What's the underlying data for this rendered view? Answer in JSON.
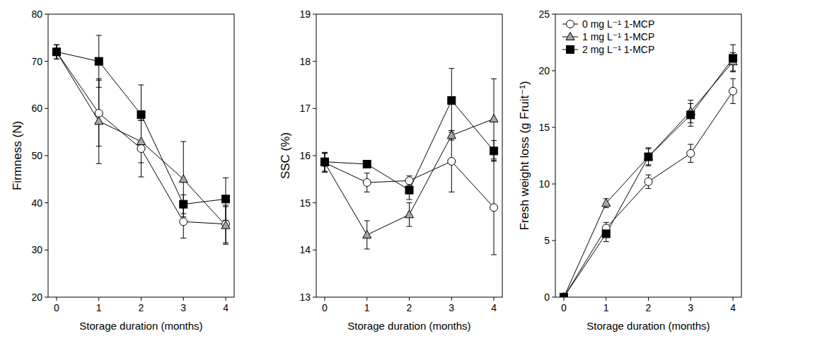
{
  "chart_data": [
    {
      "type": "line",
      "x_label": "Storage duration (months)",
      "y_label": "Firmness (N)",
      "x": [
        0,
        1,
        2,
        3,
        4
      ],
      "xlim": [
        -0.2,
        4.2
      ],
      "xticks": [
        0,
        1,
        2,
        3,
        4
      ],
      "ylim": [
        20,
        80
      ],
      "yticks": [
        20,
        30,
        40,
        50,
        60,
        70,
        80
      ],
      "series": [
        {
          "color": "#ffffff",
          "marker": "circle",
          "values": [
            72,
            59,
            51.5,
            36,
            35.5
          ],
          "errors": [
            1.5,
            7,
            6,
            3.5,
            4
          ]
        },
        {
          "color": "#a6a6a6",
          "marker": "triangle",
          "values": [
            72,
            57.3,
            53,
            45,
            35.2
          ],
          "errors": [
            1.5,
            9,
            4.5,
            8,
            4
          ]
        },
        {
          "color": "#000000",
          "marker": "square",
          "values": [
            72,
            70,
            58.7,
            39.7,
            40.8
          ],
          "errors": [
            1.5,
            5.5,
            6.3,
            2,
            4.5
          ]
        }
      ]
    },
    {
      "type": "line",
      "x_label": "Storage duration (months)",
      "y_label": "SSC (%)",
      "x": [
        0,
        1,
        2,
        3,
        4
      ],
      "xlim": [
        -0.2,
        4.2
      ],
      "xticks": [
        0,
        1,
        2,
        3,
        4
      ],
      "ylim": [
        13,
        19
      ],
      "yticks": [
        13,
        14,
        15,
        16,
        17,
        18,
        19
      ],
      "series": [
        {
          "color": "#ffffff",
          "marker": "circle",
          "values": [
            15.85,
            15.43,
            15.47,
            15.88,
            14.9
          ],
          "errors": [
            0.2,
            0.2,
            0.1,
            0.65,
            1.0
          ]
        },
        {
          "color": "#a6a6a6",
          "marker": "triangle",
          "values": [
            15.85,
            14.32,
            14.75,
            16.43,
            16.78
          ],
          "errors": [
            0.2,
            0.3,
            0.25,
            0.1,
            0.85
          ]
        },
        {
          "color": "#000000",
          "marker": "square",
          "values": [
            15.87,
            15.82,
            15.27,
            17.17,
            16.1
          ],
          "errors": [
            0.2,
            0.05,
            0.2,
            0.68,
            0.22
          ]
        }
      ]
    },
    {
      "type": "line",
      "x_label": "Storage duration (months)",
      "y_label": "Fresh weight loss (g Fruit⁻¹)",
      "x": [
        0,
        1,
        2,
        3,
        4
      ],
      "xlim": [
        -0.2,
        4.2
      ],
      "xticks": [
        0,
        1,
        2,
        3,
        4
      ],
      "ylim": [
        0,
        25
      ],
      "yticks": [
        0,
        5,
        10,
        15,
        20,
        25
      ],
      "legend": "upper left",
      "series": [
        {
          "name": "0 mg L⁻¹ 1-MCP",
          "color": "#ffffff",
          "marker": "circle",
          "values": [
            0,
            6.1,
            10.2,
            12.7,
            18.2
          ],
          "errors": [
            0.1,
            0.5,
            0.6,
            0.8,
            1.1
          ]
        },
        {
          "name": "1 mg L⁻¹ 1-MCP",
          "color": "#a6a6a6",
          "marker": "triangle",
          "values": [
            0,
            8.3,
            12.4,
            16.4,
            20.8
          ],
          "errors": [
            0.1,
            0.4,
            0.7,
            1.0,
            0.8
          ]
        },
        {
          "name": "2 mg L⁻¹ 1-MCP",
          "color": "#000000",
          "marker": "square",
          "values": [
            0,
            5.6,
            12.4,
            16.1,
            21.1
          ],
          "errors": [
            0.1,
            0.7,
            0.8,
            1.0,
            1.2
          ]
        }
      ]
    }
  ]
}
